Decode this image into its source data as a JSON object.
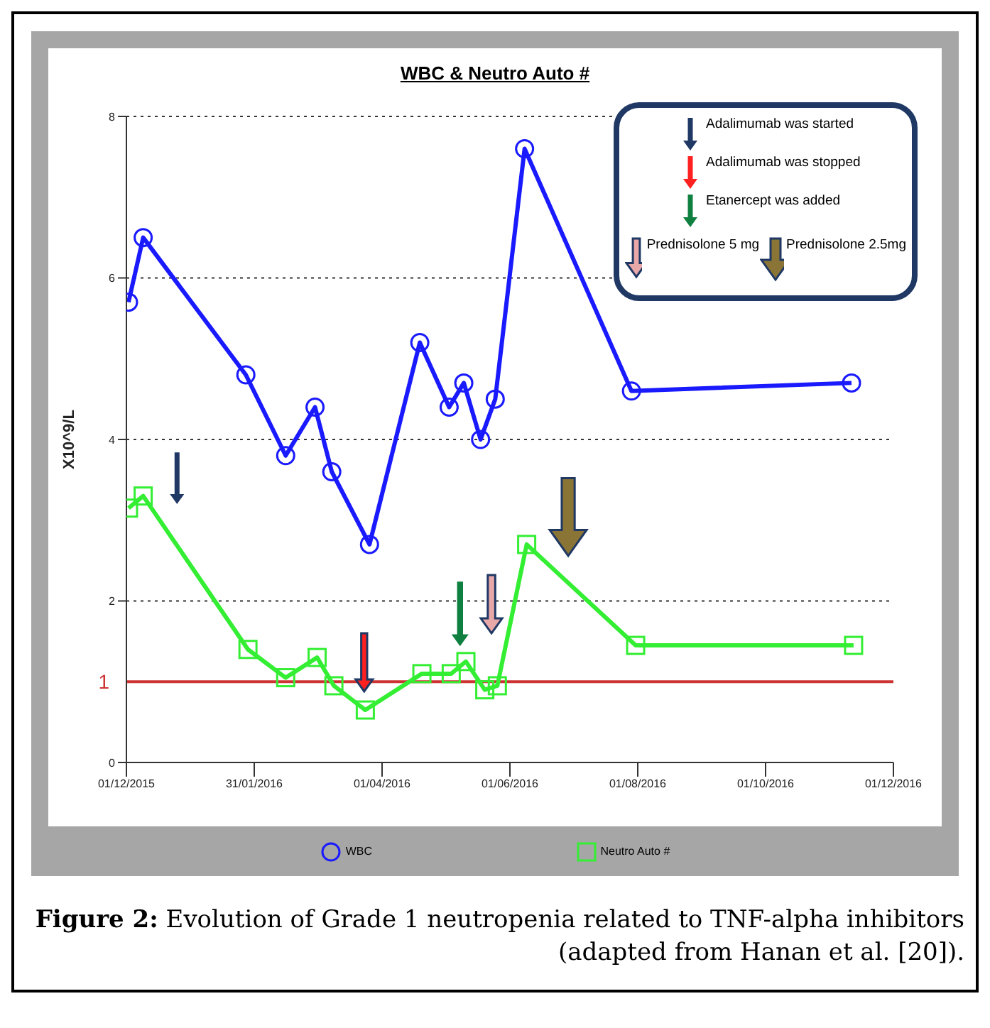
{
  "chart_data": {
    "type": "line",
    "title": "WBC & Neutro Auto #",
    "ylabel": "X10^9/L",
    "xlim": [
      "2015-12-01",
      "2016-12-01"
    ],
    "xticks": [
      {
        "value": "2015-12-01",
        "label": "01/12/2015"
      },
      {
        "value": "2016-01-31",
        "label": "31/01/2016"
      },
      {
        "value": "2016-04-01",
        "label": "01/04/2016"
      },
      {
        "value": "2016-06-01",
        "label": "01/06/2016"
      },
      {
        "value": "2016-08-01",
        "label": "01/08/2016"
      },
      {
        "value": "2016-10-01",
        "label": "01/10/2016"
      },
      {
        "value": "2016-12-01",
        "label": "01/12/2016"
      }
    ],
    "ylim": [
      0,
      8
    ],
    "yticks": [
      0,
      2,
      4,
      6,
      8
    ],
    "grid": "y",
    "legend": "bottom",
    "line_style": "solid",
    "series": [
      {
        "name": "WBC",
        "color": "#1a1aff",
        "marker": "circle",
        "x": [
          "2015-12-02",
          "2015-12-09",
          "2016-01-27",
          "2016-02-15",
          "2016-02-29",
          "2016-03-08",
          "2016-03-26",
          "2016-04-19",
          "2016-05-03",
          "2016-05-10",
          "2016-05-18",
          "2016-05-25",
          "2016-06-08",
          "2016-07-29",
          "2016-11-11"
        ],
        "values": [
          5.7,
          6.5,
          4.8,
          3.8,
          4.4,
          3.6,
          2.7,
          5.2,
          4.4,
          4.7,
          4.0,
          4.5,
          7.6,
          4.6,
          4.7
        ]
      },
      {
        "name": "Neutro Auto #",
        "color": "#33ee33",
        "marker": "square",
        "x": [
          "2015-12-02",
          "2015-12-09",
          "2016-01-28",
          "2016-02-15",
          "2016-03-01",
          "2016-03-09",
          "2016-03-24",
          "2016-04-20",
          "2016-05-04",
          "2016-05-11",
          "2016-05-20",
          "2016-05-26",
          "2016-06-09",
          "2016-07-31",
          "2016-11-12"
        ],
        "values": [
          3.15,
          3.3,
          1.4,
          1.05,
          1.3,
          0.95,
          0.65,
          1.1,
          1.1,
          1.25,
          0.9,
          0.95,
          2.7,
          1.45,
          1.45
        ]
      }
    ],
    "ref_lines": [
      {
        "axis": "y",
        "value": 1,
        "label": "1",
        "color": "#cc3333"
      }
    ],
    "annotations": [
      "Adalimumab was started",
      "Adalimumab was stopped",
      "Etanercept was added",
      "Prednisolone 5 mg",
      "Prednisolone 2.5mg",
      "Figure 2: Evolution of Grade 1 neutropenia related to TNF-alpha inhibitors (adapted from Hanan et al. [20])."
    ]
  }
}
